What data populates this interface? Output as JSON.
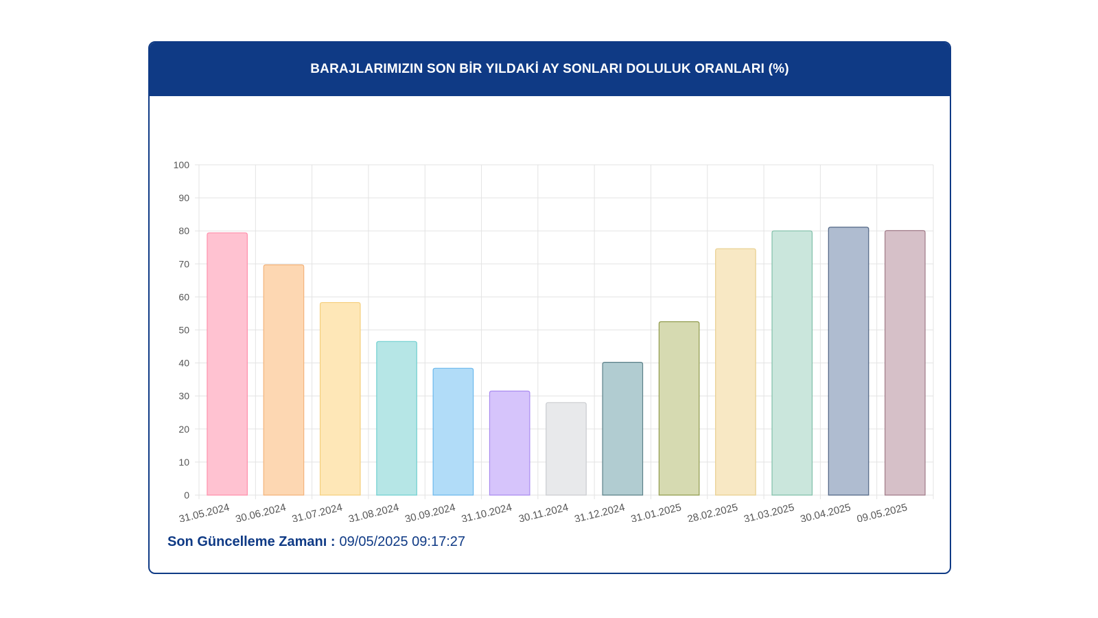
{
  "header": {
    "title": "BARAJLARIMIZIN SON BİR YILDAKİ AY SONLARI DOLULUK ORANLARI (%)"
  },
  "footer": {
    "label": "Son Güncelleme Zamanı :",
    "value": "09/05/2025 09:17:27"
  },
  "chart_data": {
    "type": "bar",
    "title": "BARAJLARIMIZIN SON BİR YILDAKİ AY SONLARI DOLULUK ORANLARI (%)",
    "categories": [
      "31.05.2024",
      "30.06.2024",
      "31.07.2024",
      "31.08.2024",
      "30.09.2024",
      "31.10.2024",
      "30.11.2024",
      "31.12.2024",
      "31.01.2025",
      "28.02.2025",
      "31.03.2025",
      "30.04.2025",
      "09.05.2025"
    ],
    "values": [
      79.4,
      69.7,
      58.3,
      46.5,
      38.4,
      31.5,
      28.0,
      40.2,
      52.5,
      74.6,
      80.0,
      81.1,
      80.1
    ],
    "ylim": [
      0,
      100
    ],
    "yticks": [
      0,
      10,
      20,
      30,
      40,
      50,
      60,
      70,
      80,
      90,
      100
    ],
    "grid": true,
    "colors": [
      {
        "fill": "#ffc2d1",
        "stroke": "#ff8fab"
      },
      {
        "fill": "#fdd7b2",
        "stroke": "#f3b27a"
      },
      {
        "fill": "#fee7b7",
        "stroke": "#f5cf7d"
      },
      {
        "fill": "#b6e6e6",
        "stroke": "#6fcfcf"
      },
      {
        "fill": "#b1dcf8",
        "stroke": "#6bb8ec"
      },
      {
        "fill": "#d6c4fb",
        "stroke": "#a98af0"
      },
      {
        "fill": "#e8e9eb",
        "stroke": "#c9cbcf"
      },
      {
        "fill": "#b1ccd1",
        "stroke": "#5a7f87"
      },
      {
        "fill": "#d6dab1",
        "stroke": "#8f9a4a"
      },
      {
        "fill": "#f8e8c4",
        "stroke": "#e8cf8e"
      },
      {
        "fill": "#cae6dc",
        "stroke": "#7fbfa8"
      },
      {
        "fill": "#afbcd0",
        "stroke": "#4f6483"
      },
      {
        "fill": "#d6c0c8",
        "stroke": "#a07a87"
      }
    ]
  }
}
